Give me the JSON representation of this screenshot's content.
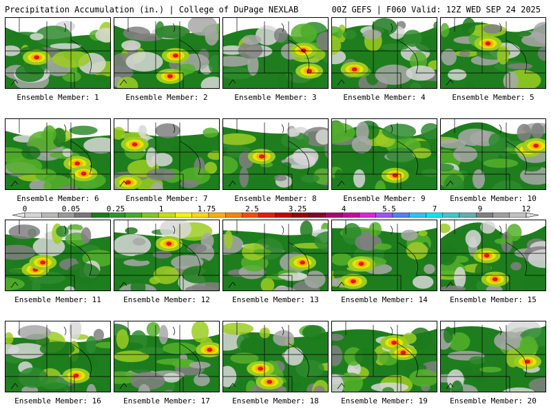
{
  "header": {
    "left": "Precipitation Accumulation (in.) | College of DuPage NEXLAB",
    "right": "00Z GEFS | F060 Valid: 12Z WED SEP 24 2025"
  },
  "colorbar": {
    "tick_labels": [
      "0",
      "0.05",
      "0.25",
      "1",
      "1.75",
      "2.5",
      "3.25",
      "4",
      "5.5",
      "7",
      "9",
      "12"
    ],
    "colors": [
      "#d4d4d4",
      "#b8b8b8",
      "#999999",
      "#777777",
      "#1c7c1c",
      "#2c962c",
      "#44ad2c",
      "#7ec81c",
      "#c8e000",
      "#f5f500",
      "#ffd800",
      "#ffae00",
      "#ff8000",
      "#ff4a00",
      "#e81c00",
      "#c80000",
      "#a00000",
      "#880030",
      "#b00070",
      "#d000a0",
      "#e020e0",
      "#a050ff",
      "#5080ff",
      "#30c0ff",
      "#00e8f0",
      "#40c8c8",
      "#60b0b0",
      "#808080",
      "#a0a0a0",
      "#c0c0c0"
    ]
  },
  "panels": [
    {
      "label": "Ensemble Member: 1"
    },
    {
      "label": "Ensemble Member: 2"
    },
    {
      "label": "Ensemble Member: 3"
    },
    {
      "label": "Ensemble Member: 4"
    },
    {
      "label": "Ensemble Member: 5"
    },
    {
      "label": "Ensemble Member: 6"
    },
    {
      "label": "Ensemble Member: 7"
    },
    {
      "label": "Ensemble Member: 8"
    },
    {
      "label": "Ensemble Member: 9"
    },
    {
      "label": "Ensemble Member: 10"
    },
    {
      "label": "Ensemble Member: 11"
    },
    {
      "label": "Ensemble Member: 12"
    },
    {
      "label": "Ensemble Member: 13"
    },
    {
      "label": "Ensemble Member: 14"
    },
    {
      "label": "Ensemble Member: 15"
    },
    {
      "label": "Ensemble Member: 16"
    },
    {
      "label": "Ensemble Member: 17"
    },
    {
      "label": "Ensemble Member: 18"
    },
    {
      "label": "Ensemble Member: 19"
    },
    {
      "label": "Ensemble Member: 20"
    }
  ]
}
